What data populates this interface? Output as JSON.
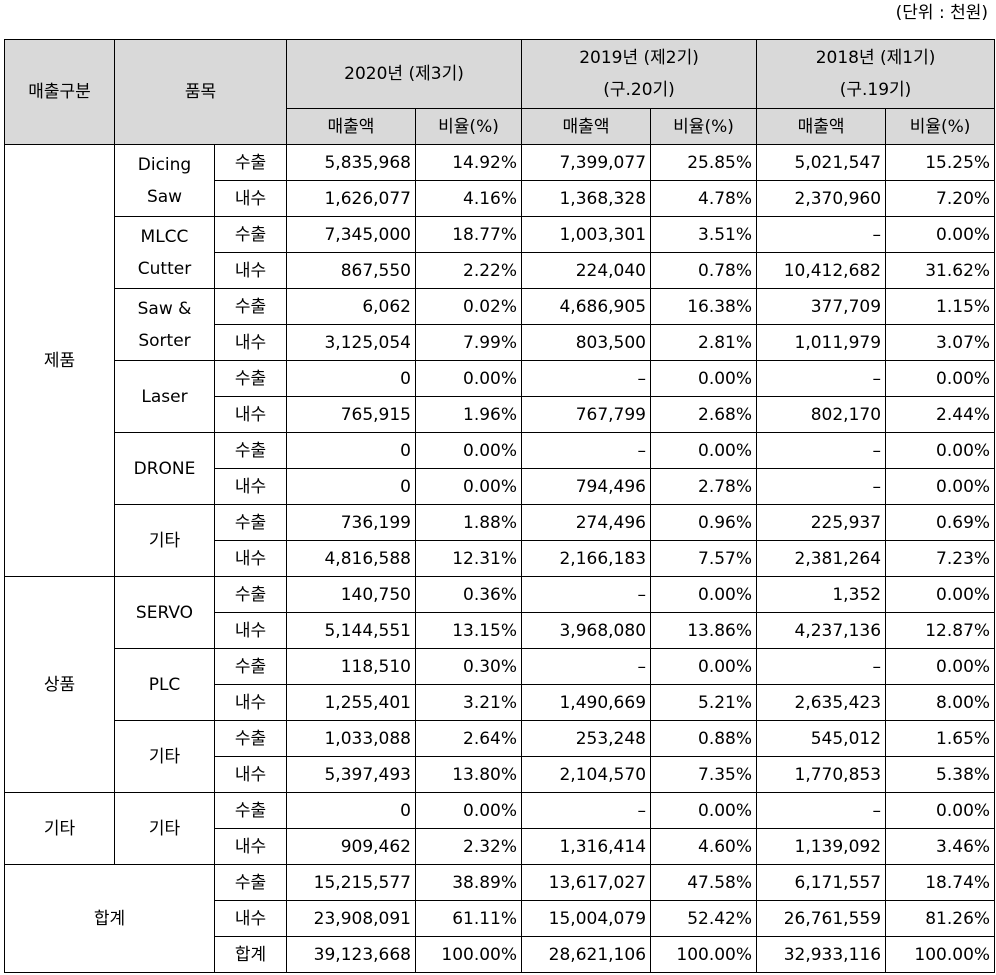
{
  "unit_label": "(단위 : 천원)",
  "header": {
    "category": "매출구분",
    "item": "품목",
    "years": [
      {
        "line1": "2020년 (제3기)",
        "line2": ""
      },
      {
        "line1": "2019년 (제2기)",
        "line2": "(구.20기)"
      },
      {
        "line1": "2018년 (제1기)",
        "line2": "(구.19기)"
      }
    ],
    "amount": "매출액",
    "ratio": "비율(%)"
  },
  "groups": [
    {
      "category": "제품",
      "products": [
        {
          "name": "Dicing Saw",
          "rows": [
            {
              "type": "수출",
              "cells": [
                "5,835,968",
                "14.92%",
                "7,399,077",
                "25.85%",
                "5,021,547",
                "15.25%"
              ]
            },
            {
              "type": "내수",
              "cells": [
                "1,626,077",
                "4.16%",
                "1,368,328",
                "4.78%",
                "2,370,960",
                "7.20%"
              ]
            }
          ]
        },
        {
          "name": "MLCC Cutter",
          "rows": [
            {
              "type": "수출",
              "cells": [
                "7,345,000",
                "18.77%",
                "1,003,301",
                "3.51%",
                "–",
                "0.00%"
              ]
            },
            {
              "type": "내수",
              "cells": [
                "867,550",
                "2.22%",
                "224,040",
                "0.78%",
                "10,412,682",
                "31.62%"
              ]
            }
          ]
        },
        {
          "name": "Saw & Sorter",
          "rows": [
            {
              "type": "수출",
              "cells": [
                "6,062",
                "0.02%",
                "4,686,905",
                "16.38%",
                "377,709",
                "1.15%"
              ]
            },
            {
              "type": "내수",
              "cells": [
                "3,125,054",
                "7.99%",
                "803,500",
                "2.81%",
                "1,011,979",
                "3.07%"
              ]
            }
          ]
        },
        {
          "name": "Laser",
          "rows": [
            {
              "type": "수출",
              "cells": [
                "0",
                "0.00%",
                "–",
                "0.00%",
                "–",
                "0.00%"
              ]
            },
            {
              "type": "내수",
              "cells": [
                "765,915",
                "1.96%",
                "767,799",
                "2.68%",
                "802,170",
                "2.44%"
              ]
            }
          ]
        },
        {
          "name": "DRONE",
          "rows": [
            {
              "type": "수출",
              "cells": [
                "0",
                "0.00%",
                "–",
                "0.00%",
                "–",
                "0.00%"
              ]
            },
            {
              "type": "내수",
              "cells": [
                "0",
                "0.00%",
                "794,496",
                "2.78%",
                "–",
                "0.00%"
              ]
            }
          ]
        },
        {
          "name": "기타",
          "rows": [
            {
              "type": "수출",
              "cells": [
                "736,199",
                "1.88%",
                "274,496",
                "0.96%",
                "225,937",
                "0.69%"
              ]
            },
            {
              "type": "내수",
              "cells": [
                "4,816,588",
                "12.31%",
                "2,166,183",
                "7.57%",
                "2,381,264",
                "7.23%"
              ]
            }
          ]
        }
      ]
    },
    {
      "category": "상품",
      "products": [
        {
          "name": "SERVO",
          "rows": [
            {
              "type": "수출",
              "cells": [
                "140,750",
                "0.36%",
                "–",
                "0.00%",
                "1,352",
                "0.00%"
              ]
            },
            {
              "type": "내수",
              "cells": [
                "5,144,551",
                "13.15%",
                "3,968,080",
                "13.86%",
                "4,237,136",
                "12.87%"
              ]
            }
          ]
        },
        {
          "name": "PLC",
          "rows": [
            {
              "type": "수출",
              "cells": [
                "118,510",
                "0.30%",
                "–",
                "0.00%",
                "–",
                "0.00%"
              ]
            },
            {
              "type": "내수",
              "cells": [
                "1,255,401",
                "3.21%",
                "1,490,669",
                "5.21%",
                "2,635,423",
                "8.00%"
              ]
            }
          ]
        },
        {
          "name": "기타",
          "rows": [
            {
              "type": "수출",
              "cells": [
                "1,033,088",
                "2.64%",
                "253,248",
                "0.88%",
                "545,012",
                "1.65%"
              ]
            },
            {
              "type": "내수",
              "cells": [
                "5,397,493",
                "13.80%",
                "2,104,570",
                "7.35%",
                "1,770,853",
                "5.38%"
              ]
            }
          ]
        }
      ]
    },
    {
      "category": "기타",
      "products": [
        {
          "name": "기타",
          "rows": [
            {
              "type": "수출",
              "cells": [
                "0",
                "0.00%",
                "–",
                "0.00%",
                "–",
                "0.00%"
              ]
            },
            {
              "type": "내수",
              "cells": [
                "909,462",
                "2.32%",
                "1,316,414",
                "4.60%",
                "1,139,092",
                "3.46%"
              ]
            }
          ]
        }
      ]
    }
  ],
  "total": {
    "label": "합계",
    "rows": [
      {
        "type": "수출",
        "cells": [
          "15,215,577",
          "38.89%",
          "13,617,027",
          "47.58%",
          "6,171,557",
          "18.74%"
        ]
      },
      {
        "type": "내수",
        "cells": [
          "23,908,091",
          "61.11%",
          "15,004,079",
          "52.42%",
          "26,761,559",
          "81.26%"
        ]
      },
      {
        "type": "합계",
        "cells": [
          "39,123,668",
          "100.00%",
          "28,621,106",
          "100.00%",
          "32,933,116",
          "100.00%"
        ]
      }
    ]
  }
}
